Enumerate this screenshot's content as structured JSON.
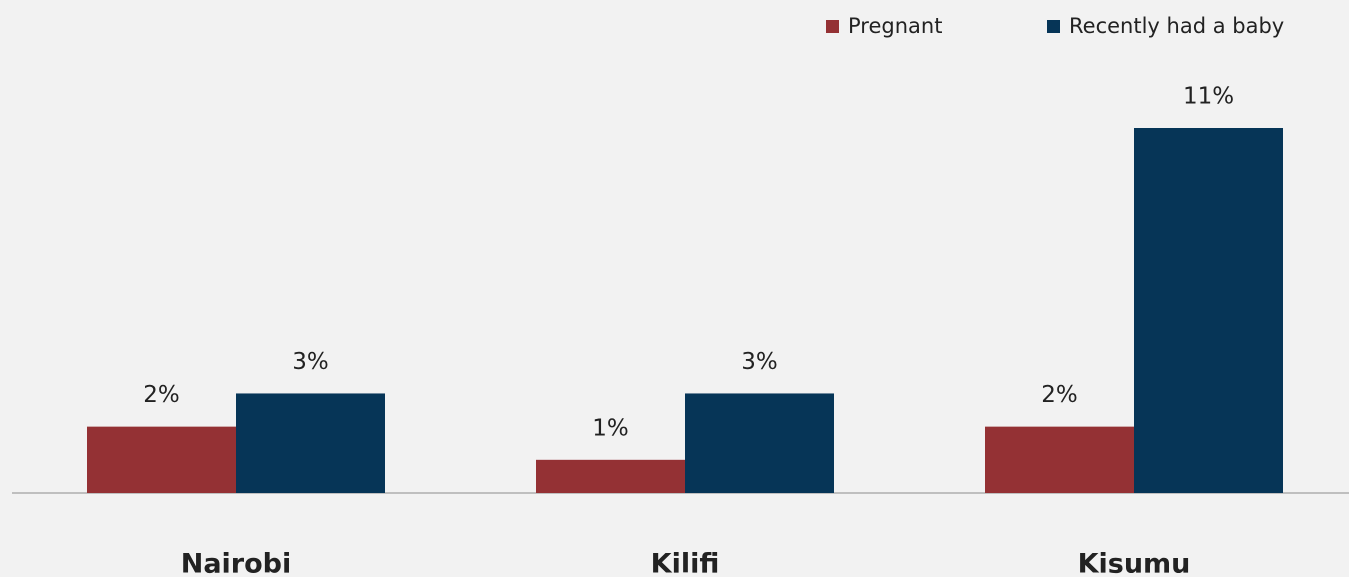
{
  "chart_data": {
    "type": "bar",
    "categories": [
      "Nairobi",
      "Kilifi",
      "Kisumu"
    ],
    "series": [
      {
        "name": "Pregnant",
        "color": "#943134",
        "values": [
          2,
          1,
          2
        ],
        "value_labels": [
          "2%",
          "1%",
          "2%"
        ]
      },
      {
        "name": "Recently had a baby",
        "color": "#063557",
        "values": [
          3,
          3,
          11
        ],
        "value_labels": [
          "3%",
          "3%",
          "11%"
        ]
      }
    ],
    "legend": "top-right"
  }
}
